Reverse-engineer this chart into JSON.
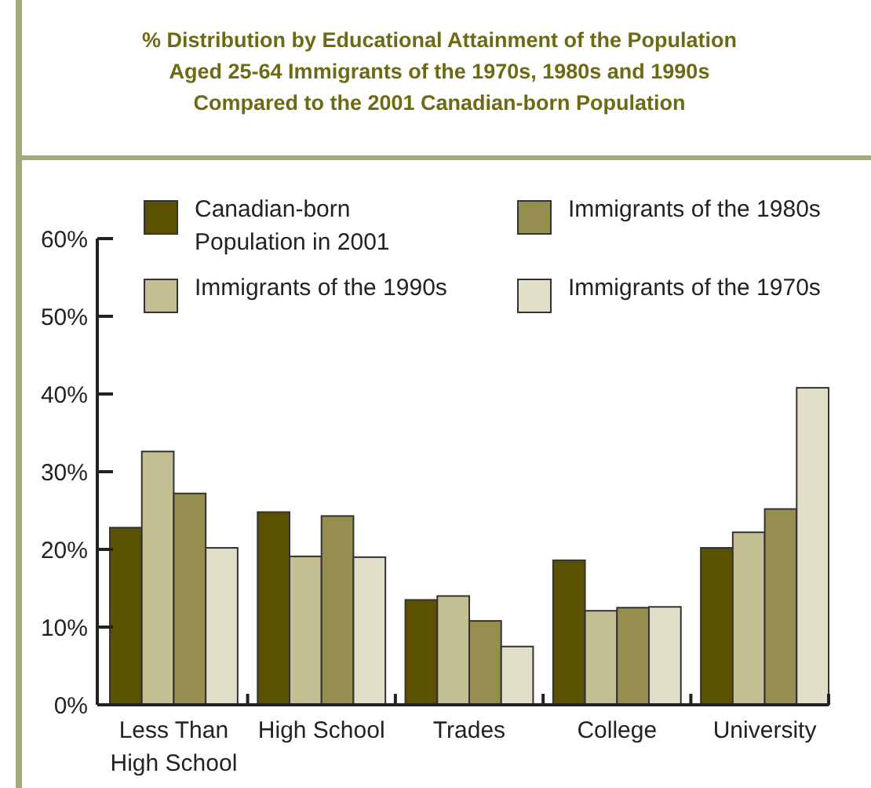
{
  "chart_data": {
    "type": "bar",
    "title": "% Distribution by Educational Attainment of the Population Aged 25-64 Immigrants of the 1970s, 1980s and 1990s Compared to the 2001 Canadian-born Population",
    "categories": [
      "Less Than High School",
      "High School",
      "Trades",
      "College",
      "University"
    ],
    "series": [
      {
        "name": "Canadian-born Population in 2001",
        "color": "#5a5200",
        "values": [
          22.8,
          24.8,
          13.5,
          18.6,
          20.2
        ]
      },
      {
        "name": "Immigrants of the 1990s",
        "color": "#c3bf93",
        "values": [
          32.6,
          19.1,
          14.0,
          12.1,
          22.2
        ]
      },
      {
        "name": "Immigrants of the 1980s",
        "color": "#968e4e",
        "values": [
          27.2,
          24.3,
          10.8,
          12.5,
          25.2
        ]
      },
      {
        "name": "Immigrants of the 1970s",
        "color": "#e2dfc8",
        "values": [
          20.2,
          19.0,
          7.5,
          12.6,
          40.8
        ]
      }
    ],
    "ylim": [
      0,
      60
    ],
    "yticks": [
      {
        "value": 0,
        "label": "0%"
      },
      {
        "value": 10,
        "label": "10%"
      },
      {
        "value": 20,
        "label": "20%"
      },
      {
        "value": 30,
        "label": "30%"
      },
      {
        "value": 40,
        "label": "40%"
      },
      {
        "value": 50,
        "label": "50%"
      },
      {
        "value": 60,
        "label": "60%"
      }
    ],
    "grid": false,
    "legend": "top"
  }
}
